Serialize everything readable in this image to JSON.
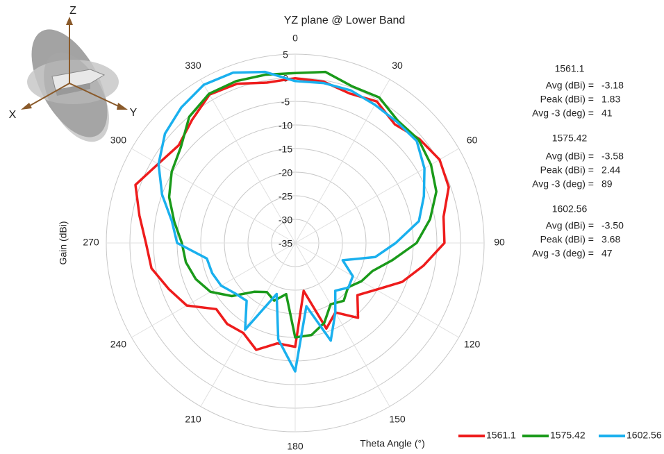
{
  "chart_data": {
    "type": "polar",
    "title": "YZ plane @ Lower Band",
    "ylabel": "Gain (dBi)",
    "xlabel": "Theta Angle (°)",
    "axis_labels": {
      "z": "Z",
      "x": "X",
      "y": "Y"
    },
    "rlim": [
      -35,
      5
    ],
    "rticks": [
      5,
      0,
      -5,
      -10,
      -15,
      -20,
      -25,
      -30,
      -35
    ],
    "thetaticks": [
      0,
      30,
      60,
      90,
      120,
      150,
      180,
      210,
      240,
      270,
      300,
      330
    ],
    "theta": [
      0,
      10,
      20,
      30,
      40,
      50,
      60,
      70,
      80,
      90,
      100,
      110,
      120,
      130,
      140,
      150,
      160,
      170,
      180,
      190,
      200,
      210,
      220,
      230,
      240,
      250,
      260,
      270,
      280,
      290,
      300,
      310,
      320,
      330,
      340,
      350
    ],
    "series": [
      {
        "name": "1561.1",
        "color": "#ee1c1c",
        "values": [
          -0.1,
          -0.3,
          -1.3,
          -0.4,
          -2.2,
          -0.7,
          0.3,
          -0.4,
          -3.1,
          -3.4,
          -7.4,
          -10.9,
          -15.2,
          -17.8,
          -14.3,
          -18,
          -15.7,
          -24.7,
          -13,
          -13.4,
          -10.9,
          -13,
          -12.6,
          -13.2,
          -8.5,
          -6.5,
          -4.1,
          -3.4,
          -1.5,
          1.0,
          -1.5,
          -2.8,
          -1,
          1.3,
          0.9,
          -0.5
        ]
      },
      {
        "name": "1575.42",
        "color": "#1a9a1a",
        "values": [
          1.0,
          1.8,
          0.3,
          0.6,
          -1.2,
          -0.9,
          -1.8,
          -3.2,
          -6,
          -9.3,
          -14.1,
          -17.6,
          -18.8,
          -20.4,
          -19,
          -20,
          -17,
          -15.2,
          -15,
          -24,
          -22,
          -23,
          -21.5,
          -17.5,
          -14.3,
          -12.6,
          -11.5,
          -11,
          -9,
          -6.6,
          -4.8,
          -3.4,
          -0.1,
          1.5,
          1.5,
          1.2
        ]
      },
      {
        "name": "1602.56",
        "color": "#1ab0ee",
        "values": [
          -0.7,
          -0.6,
          -0.6,
          -1.2,
          -1.5,
          -1.4,
          -3.4,
          -6,
          -8.4,
          -13.7,
          -17.8,
          -24.3,
          -20.9,
          -20.3,
          -21.8,
          -18,
          -13,
          -21.4,
          -7.8,
          -14.3,
          -23.5,
          -13.8,
          -19,
          -18.4,
          -16.9,
          -16.3,
          -16,
          -10,
          -8.5,
          -5,
          -1.6,
          1,
          2.5,
          3.7,
          3.4,
          1.8
        ]
      }
    ],
    "stats": [
      {
        "title": "1561.1",
        "rows": [
          [
            "Avg (dBi) =",
            "-3.18"
          ],
          [
            "Peak (dBi) =",
            "1.83"
          ],
          [
            "Avg -3 (deg) =",
            "41"
          ]
        ]
      },
      {
        "title": "1575.42",
        "rows": [
          [
            "Avg (dBi) =",
            "-3.58"
          ],
          [
            "Peak (dBi) =",
            "2.44"
          ],
          [
            "Avg -3 (deg) =",
            "89"
          ]
        ]
      },
      {
        "title": "1602.56",
        "rows": [
          [
            "Avg (dBi) =",
            "-3.50"
          ],
          [
            "Peak (dBi) =",
            "3.68"
          ],
          [
            "Avg -3 (deg) =",
            "47"
          ]
        ]
      }
    ]
  }
}
